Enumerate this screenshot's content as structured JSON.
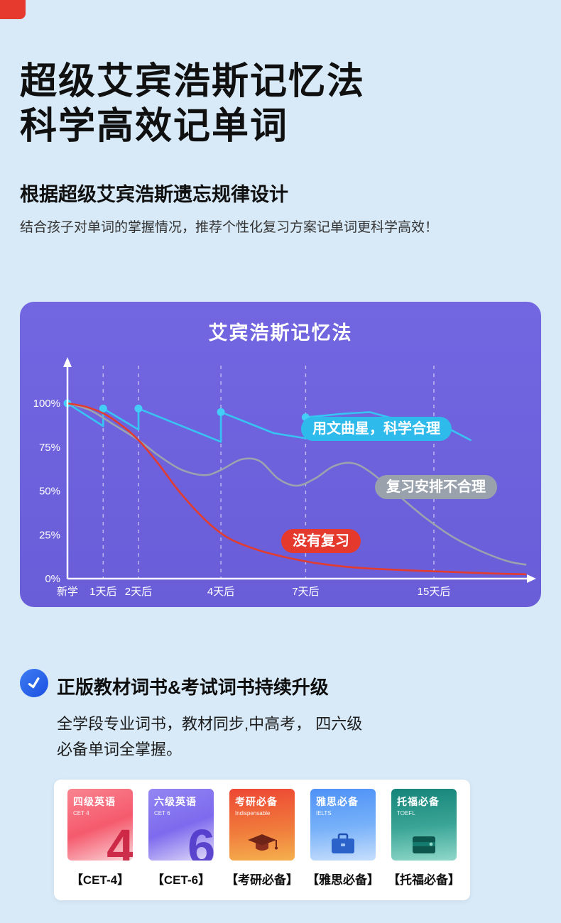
{
  "page": {
    "background": "#d8eaf8",
    "corner_fragment_color": "#e73a2e"
  },
  "hero": {
    "title_line1": "超级艾宾浩斯记忆法",
    "title_line2": "科学高效记单词",
    "subtitle": "根据超级艾宾浩斯遗忘规律设计",
    "description": "结合孩子对单词的掌握情况，推荐个性化复习方案记单词更科学高效！"
  },
  "chart_data": {
    "type": "line",
    "title": "艾宾浩斯记忆法",
    "background": "#6e62dc",
    "axis_color": "#ffffff",
    "ylim": [
      0,
      100
    ],
    "grid": "dashed-vertical",
    "y_ticks": [
      {
        "label": "100%",
        "value": 100
      },
      {
        "label": "75%",
        "value": 75
      },
      {
        "label": "50%",
        "value": 50
      },
      {
        "label": "25%",
        "value": 25
      },
      {
        "label": "0%",
        "value": 0
      }
    ],
    "x_ticks": [
      {
        "label": "新学",
        "pos": 0.0
      },
      {
        "label": "1天后",
        "pos": 0.078
      },
      {
        "label": "2天后",
        "pos": 0.155
      },
      {
        "label": "4天后",
        "pos": 0.335
      },
      {
        "label": "7天后",
        "pos": 0.52
      },
      {
        "label": "15天后",
        "pos": 0.8
      }
    ],
    "grid_lines_at": [
      0.078,
      0.155,
      0.335,
      0.52,
      0.8
    ],
    "series": [
      {
        "name": "用文曲星，科学合理",
        "color": "#38c4f2",
        "marker_color": "#43cdf7",
        "smooth": false,
        "points": [
          [
            0,
            100
          ],
          [
            0.078,
            87
          ],
          [
            0.078,
            97
          ],
          [
            0.155,
            85
          ],
          [
            0.155,
            97
          ],
          [
            0.335,
            78
          ],
          [
            0.335,
            95
          ],
          [
            0.45,
            83
          ],
          [
            0.52,
            80
          ],
          [
            0.52,
            92
          ],
          [
            0.6,
            94
          ],
          [
            0.66,
            95
          ],
          [
            0.73,
            90
          ],
          [
            0.8,
            83
          ],
          [
            0.8,
            90
          ],
          [
            0.88,
            79
          ]
        ],
        "markers": [
          [
            0,
            100
          ],
          [
            0.078,
            97
          ],
          [
            0.155,
            97
          ],
          [
            0.335,
            95
          ],
          [
            0.52,
            92
          ],
          [
            0.8,
            90
          ]
        ]
      },
      {
        "name": "复习安排不合理",
        "color": "#9aa3ae",
        "smooth": true,
        "points": [
          [
            0,
            100
          ],
          [
            0.05,
            96
          ],
          [
            0.1,
            88
          ],
          [
            0.155,
            79
          ],
          [
            0.2,
            70
          ],
          [
            0.25,
            62
          ],
          [
            0.3,
            59
          ],
          [
            0.335,
            62
          ],
          [
            0.38,
            68
          ],
          [
            0.42,
            67
          ],
          [
            0.46,
            57
          ],
          [
            0.5,
            53
          ],
          [
            0.54,
            57
          ],
          [
            0.58,
            64
          ],
          [
            0.62,
            66
          ],
          [
            0.66,
            61
          ],
          [
            0.72,
            48
          ],
          [
            0.78,
            35
          ],
          [
            0.84,
            24
          ],
          [
            0.9,
            16
          ],
          [
            0.96,
            10
          ],
          [
            1.0,
            8
          ]
        ],
        "markers": []
      },
      {
        "name": "没有复习",
        "color": "#e23c30",
        "smooth": true,
        "points": [
          [
            0,
            100
          ],
          [
            0.04,
            98
          ],
          [
            0.08,
            94
          ],
          [
            0.12,
            87
          ],
          [
            0.155,
            79
          ],
          [
            0.2,
            65
          ],
          [
            0.24,
            51
          ],
          [
            0.28,
            39
          ],
          [
            0.32,
            29
          ],
          [
            0.36,
            22
          ],
          [
            0.42,
            16
          ],
          [
            0.48,
            12
          ],
          [
            0.54,
            9
          ],
          [
            0.62,
            6.5
          ],
          [
            0.72,
            5
          ],
          [
            0.82,
            4
          ],
          [
            0.92,
            3
          ],
          [
            1.0,
            2.5
          ]
        ],
        "markers": []
      }
    ],
    "annotations": [
      {
        "text": "用文曲星，科学合理",
        "color": "#2ebbec"
      },
      {
        "text": "复习安排不合理",
        "color": "#99a2ac"
      },
      {
        "text": "没有复习",
        "color": "#e6392d"
      }
    ]
  },
  "section2": {
    "icon": "check-icon",
    "heading": "正版教材词书&考试词书持续升级",
    "body_line1": "全学段专业词书，教材同步,中高考， 四六级",
    "body_line2": "必备单词全掌握。"
  },
  "books": {
    "items": [
      {
        "title": "四级英语",
        "subtitle": "CET 4",
        "glyph": "4",
        "label": "【CET-4】",
        "color": "#f55a6d"
      },
      {
        "title": "六级英语",
        "subtitle": "CET 6",
        "glyph": "6",
        "label": "【CET-6】",
        "color": "#7d6aee"
      },
      {
        "title": "考研必备",
        "subtitle": "Indispensable",
        "icon": "graduation-cap-icon",
        "label": "【考研必备】",
        "color": "#ee4734"
      },
      {
        "title": "雅思必备",
        "subtitle": "IELTS",
        "icon": "briefcase-icon",
        "label": "【雅思必备】",
        "color": "#4e92f7"
      },
      {
        "title": "托福必备",
        "subtitle": "TOEFL",
        "icon": "wallet-icon",
        "label": "【托福必备】",
        "color": "#15847a"
      }
    ]
  }
}
